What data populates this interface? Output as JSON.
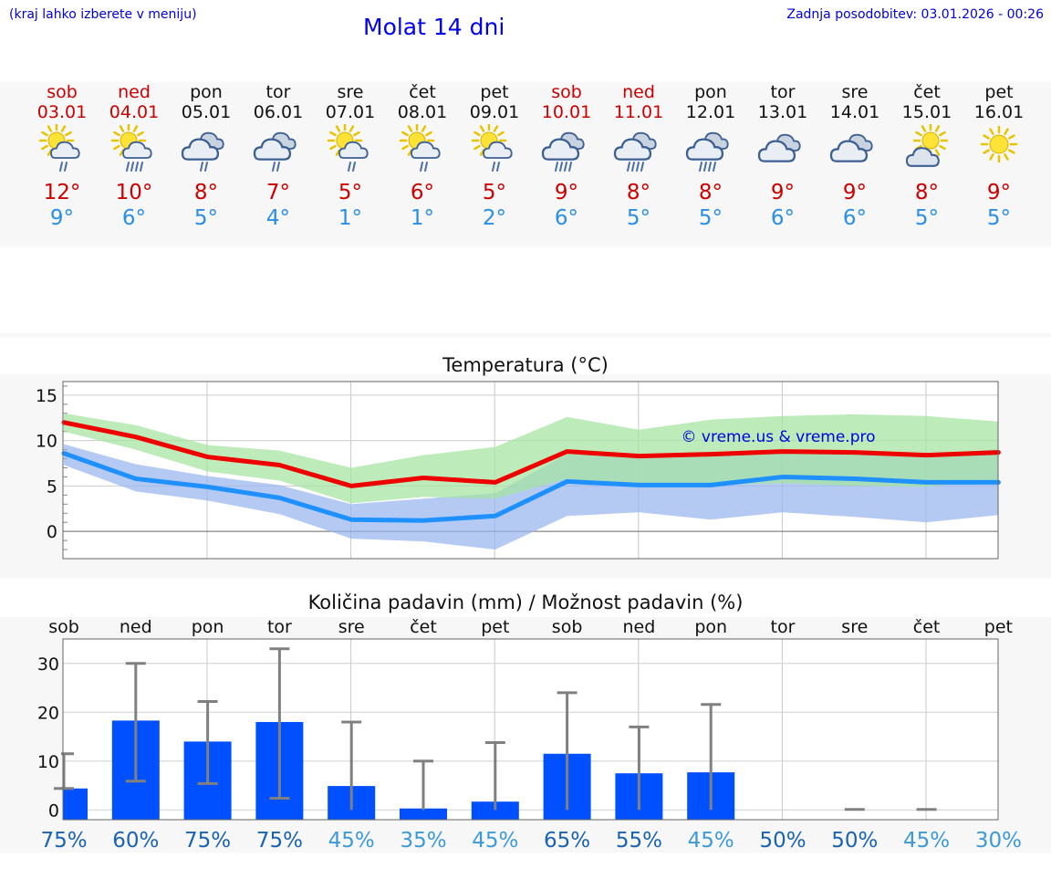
{
  "header": {
    "hint": "(kraj lahko izberete v meniju)",
    "title": "Molat 14 dni",
    "updated": "Zadnja posodobitev: 03.01.2026 - 00:26"
  },
  "days": [
    {
      "name": "sob",
      "date": "03.01",
      "weekend": true,
      "icon": "sun-cloud-rain-icon",
      "tmax": "12°",
      "tmin": "9°"
    },
    {
      "name": "ned",
      "date": "04.01",
      "weekend": true,
      "icon": "sun-cloud-heavy-rain-icon",
      "tmax": "10°",
      "tmin": "6°"
    },
    {
      "name": "pon",
      "date": "05.01",
      "weekend": false,
      "icon": "clouds-rain-icon",
      "tmax": "8°",
      "tmin": "5°"
    },
    {
      "name": "tor",
      "date": "06.01",
      "weekend": false,
      "icon": "clouds-rain-icon",
      "tmax": "7°",
      "tmin": "4°"
    },
    {
      "name": "sre",
      "date": "07.01",
      "weekend": false,
      "icon": "sun-cloud-rain-icon",
      "tmax": "5°",
      "tmin": "1°"
    },
    {
      "name": "čet",
      "date": "08.01",
      "weekend": false,
      "icon": "sun-cloud-rain-icon",
      "tmax": "6°",
      "tmin": "1°"
    },
    {
      "name": "pet",
      "date": "09.01",
      "weekend": false,
      "icon": "sun-cloud-rain-icon",
      "tmax": "5°",
      "tmin": "2°"
    },
    {
      "name": "sob",
      "date": "10.01",
      "weekend": true,
      "icon": "clouds-heavy-rain-icon",
      "tmax": "9°",
      "tmin": "6°"
    },
    {
      "name": "ned",
      "date": "11.01",
      "weekend": true,
      "icon": "clouds-heavy-rain-icon",
      "tmax": "8°",
      "tmin": "5°"
    },
    {
      "name": "pon",
      "date": "12.01",
      "weekend": false,
      "icon": "clouds-heavy-rain-icon",
      "tmax": "8°",
      "tmin": "5°"
    },
    {
      "name": "tor",
      "date": "13.01",
      "weekend": false,
      "icon": "clouds-icon",
      "tmax": "9°",
      "tmin": "6°"
    },
    {
      "name": "sre",
      "date": "14.01",
      "weekend": false,
      "icon": "clouds-icon",
      "tmax": "9°",
      "tmin": "6°"
    },
    {
      "name": "čet",
      "date": "15.01",
      "weekend": false,
      "icon": "sun-cloud-icon",
      "tmax": "8°",
      "tmin": "5°"
    },
    {
      "name": "pet",
      "date": "16.01",
      "weekend": false,
      "icon": "sun-icon",
      "tmax": "9°",
      "tmin": "5°"
    }
  ],
  "chart_data": [
    {
      "type": "line",
      "title": "Temperatura (°C)",
      "watermark": "© vreme.us & vreme.pro",
      "ylim": [
        -3,
        16.5
      ],
      "yticks": [
        0,
        5,
        10,
        15
      ],
      "x": [
        0,
        1,
        2,
        3,
        4,
        5,
        6,
        7,
        8,
        9,
        10,
        11,
        12,
        13
      ],
      "series": [
        {
          "name": "max",
          "color": "#ee0000",
          "values": [
            12,
            10.4,
            8.2,
            7.3,
            5.0,
            5.9,
            5.4,
            8.8,
            8.3,
            8.5,
            8.8,
            8.7,
            8.4,
            8.7
          ]
        },
        {
          "name": "min",
          "color": "#1e90ff",
          "values": [
            8.6,
            5.8,
            4.9,
            3.7,
            1.3,
            1.2,
            1.7,
            5.5,
            5.1,
            5.1,
            6.0,
            5.8,
            5.4,
            5.4
          ]
        }
      ],
      "max_range": {
        "color": "#a4e4a0",
        "upper": [
          13.0,
          11.7,
          9.5,
          8.9,
          7.0,
          8.4,
          9.3,
          12.6,
          11.2,
          12.3,
          12.7,
          12.9,
          12.7,
          12.1
        ],
        "lower": [
          11.0,
          9.0,
          6.6,
          5.6,
          3.1,
          3.8,
          3.6,
          5.8,
          5.1,
          5.1,
          5.3,
          5.0,
          4.9,
          5.7
        ]
      },
      "min_range": {
        "color": "#98b5ee",
        "upper": [
          9.6,
          7.4,
          6.1,
          5.1,
          3.0,
          3.6,
          4.2,
          8.5,
          8.1,
          8.4,
          8.9,
          8.7,
          8.2,
          9.1
        ],
        "lower": [
          7.3,
          4.4,
          3.4,
          1.9,
          -0.8,
          -1.1,
          -2.0,
          1.7,
          2.1,
          1.3,
          2.1,
          1.6,
          1.0,
          1.8
        ]
      }
    },
    {
      "type": "bar",
      "title": "Količina padavin (mm) / Možnost padavin (%)",
      "ylim": [
        -2,
        35
      ],
      "yticks": [
        0,
        10,
        20,
        30
      ],
      "categories": [
        "sob",
        "ned",
        "pon",
        "tor",
        "sre",
        "čet",
        "pet",
        "sob",
        "ned",
        "pon",
        "tor",
        "sre",
        "čet",
        "pet"
      ],
      "values": [
        4.4,
        18.3,
        14.0,
        18.0,
        4.9,
        0.3,
        1.7,
        11.5,
        7.5,
        7.7,
        0,
        0,
        0,
        0
      ],
      "error_high": [
        11.5,
        30.0,
        22.2,
        33.0,
        18.0,
        10.0,
        13.8,
        24.0,
        17.0,
        21.6,
        0,
        0.1,
        0.1,
        0
      ],
      "error_low": [
        4.4,
        5.9,
        5.4,
        2.4,
        0,
        0,
        0,
        0,
        0,
        0,
        0,
        0,
        0,
        0
      ],
      "probability": [
        "75%",
        "60%",
        "75%",
        "75%",
        "45%",
        "35%",
        "45%",
        "65%",
        "55%",
        "45%",
        "50%",
        "50%",
        "45%",
        "30%"
      ],
      "bar_color": "#0050ff",
      "whisker_color": "#808080"
    }
  ]
}
